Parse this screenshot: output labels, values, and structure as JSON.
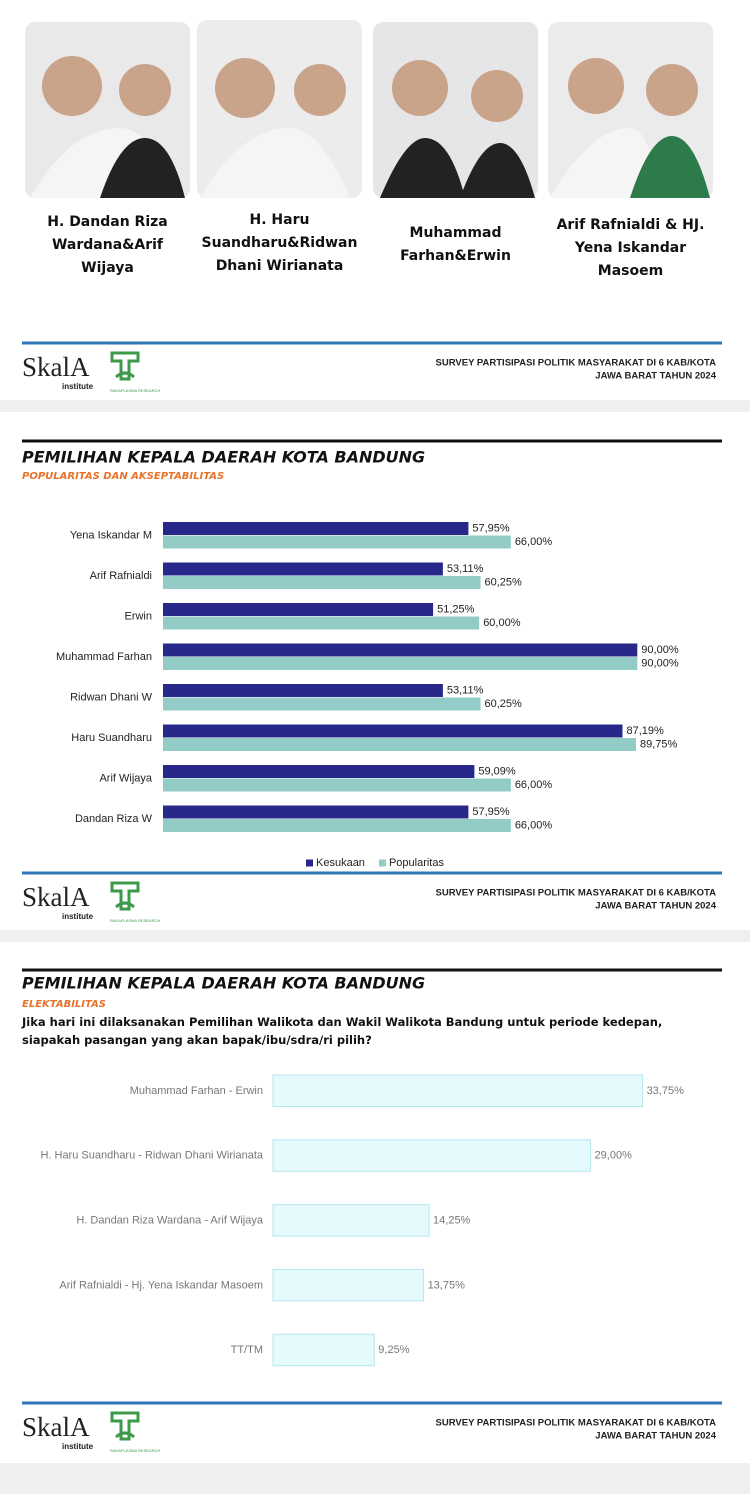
{
  "candidates": [
    {
      "name": "H. Dandan Riza Wardana&Arif Wijaya"
    },
    {
      "name": "H. Haru Suandharu&Ridwan Dhani Wirianata"
    },
    {
      "name": "Muhammad Farhan&Erwin"
    },
    {
      "name": "Arif Rafnialdi & HJ. Yena Iskandar Masoem"
    }
  ],
  "footer": {
    "brand": "SkalA",
    "brand_sub": "institute",
    "partner": "RAKAPLASMA RESEARCH",
    "survey": "SURVEY PARTISIPASI POLITIK MASYARAKAT DI 6 KAB/KOTA",
    "year": "JAWA BARAT TAHUN 2024"
  },
  "chart_data": [
    {
      "type": "bar",
      "title": "PEMILIHAN KEPALA DAERAH KOTA BANDUNG",
      "subtitle": "POPULARITAS DAN AKSEPTABILITAS",
      "categories": [
        "Yena Iskandar M",
        "Arif Rafnialdi",
        "Erwin",
        "Muhammad Farhan",
        "Ridwan Dhani W",
        "Haru Suandharu",
        "Arif Wijaya",
        "Dandan Riza W"
      ],
      "series": [
        {
          "name": "Kesukaan",
          "color": "#28288a",
          "values": [
            57.95,
            53.11,
            51.25,
            90,
            53.11,
            87.19,
            59.09,
            57.95
          ],
          "value_labels": [
            "57,95%",
            "53,11%",
            "51,25%",
            "90,00%",
            "53,11%",
            "87,19%",
            "59,09%",
            "57,95%"
          ]
        },
        {
          "name": "Popularitas",
          "color": "#93ccc6",
          "values": [
            66,
            60.25,
            60,
            90,
            60.25,
            89.75,
            66,
            66
          ],
          "value_labels": [
            "66,00%",
            "60,25%",
            "60,00%",
            "90,00%",
            "60,25%",
            "89,75%",
            "66,00%",
            "66,00%"
          ]
        }
      ],
      "xlim": [
        0,
        100
      ],
      "legend": "bottom"
    },
    {
      "type": "bar",
      "title": "PEMILIHAN KEPALA DAERAH KOTA BANDUNG",
      "subtitle": "ELEKTABILITAS",
      "question": "Jika hari ini dilaksanakan Pemilihan Walikota dan Wakil Walikota Bandung untuk periode kedepan, siapakah pasangan yang akan bapak/ibu/sdra/ri pilih?",
      "categories": [
        "Muhammad Farhan - Erwin",
        "H. Haru Suandharu - Ridwan Dhani Wirianata",
        "H. Dandan Riza Wardana - Arif Wijaya",
        "Arif Rafnialdi - Hj. Yena Iskandar Masoem",
        "TT/TM"
      ],
      "values": [
        33.75,
        29,
        14.25,
        13.75,
        9.25
      ],
      "value_labels": [
        "33,75%",
        "29,00%",
        "14,25%",
        "13,75%",
        "9,25%"
      ],
      "color": "#e4fafc",
      "xlim": [
        0,
        40
      ]
    }
  ]
}
